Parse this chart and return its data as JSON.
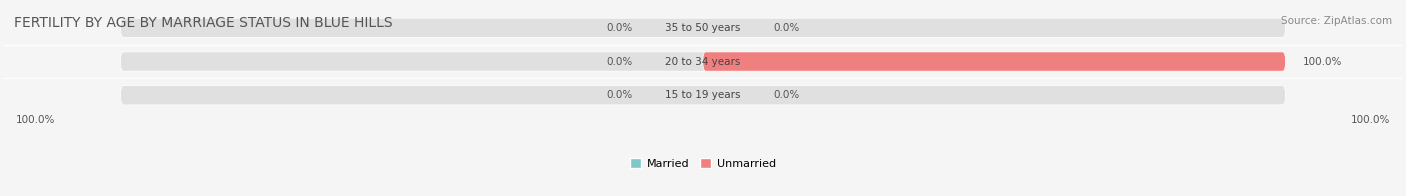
{
  "title": "FERTILITY BY AGE BY MARRIAGE STATUS IN BLUE HILLS",
  "source": "Source: ZipAtlas.com",
  "categories": [
    "15 to 19 years",
    "20 to 34 years",
    "35 to 50 years"
  ],
  "married_values": [
    0.0,
    0.0,
    0.0
  ],
  "unmarried_values": [
    0.0,
    100.0,
    0.0
  ],
  "married_color": "#7ec8c8",
  "unmarried_color": "#f08080",
  "bg_color": "#f0f0f0",
  "bar_bg_color": "#e8e8e8",
  "title_fontsize": 10,
  "label_fontsize": 8,
  "axis_label_fontsize": 8,
  "xlim": [
    -100,
    100
  ],
  "left_label": "100.0%",
  "right_label": "100.0%"
}
